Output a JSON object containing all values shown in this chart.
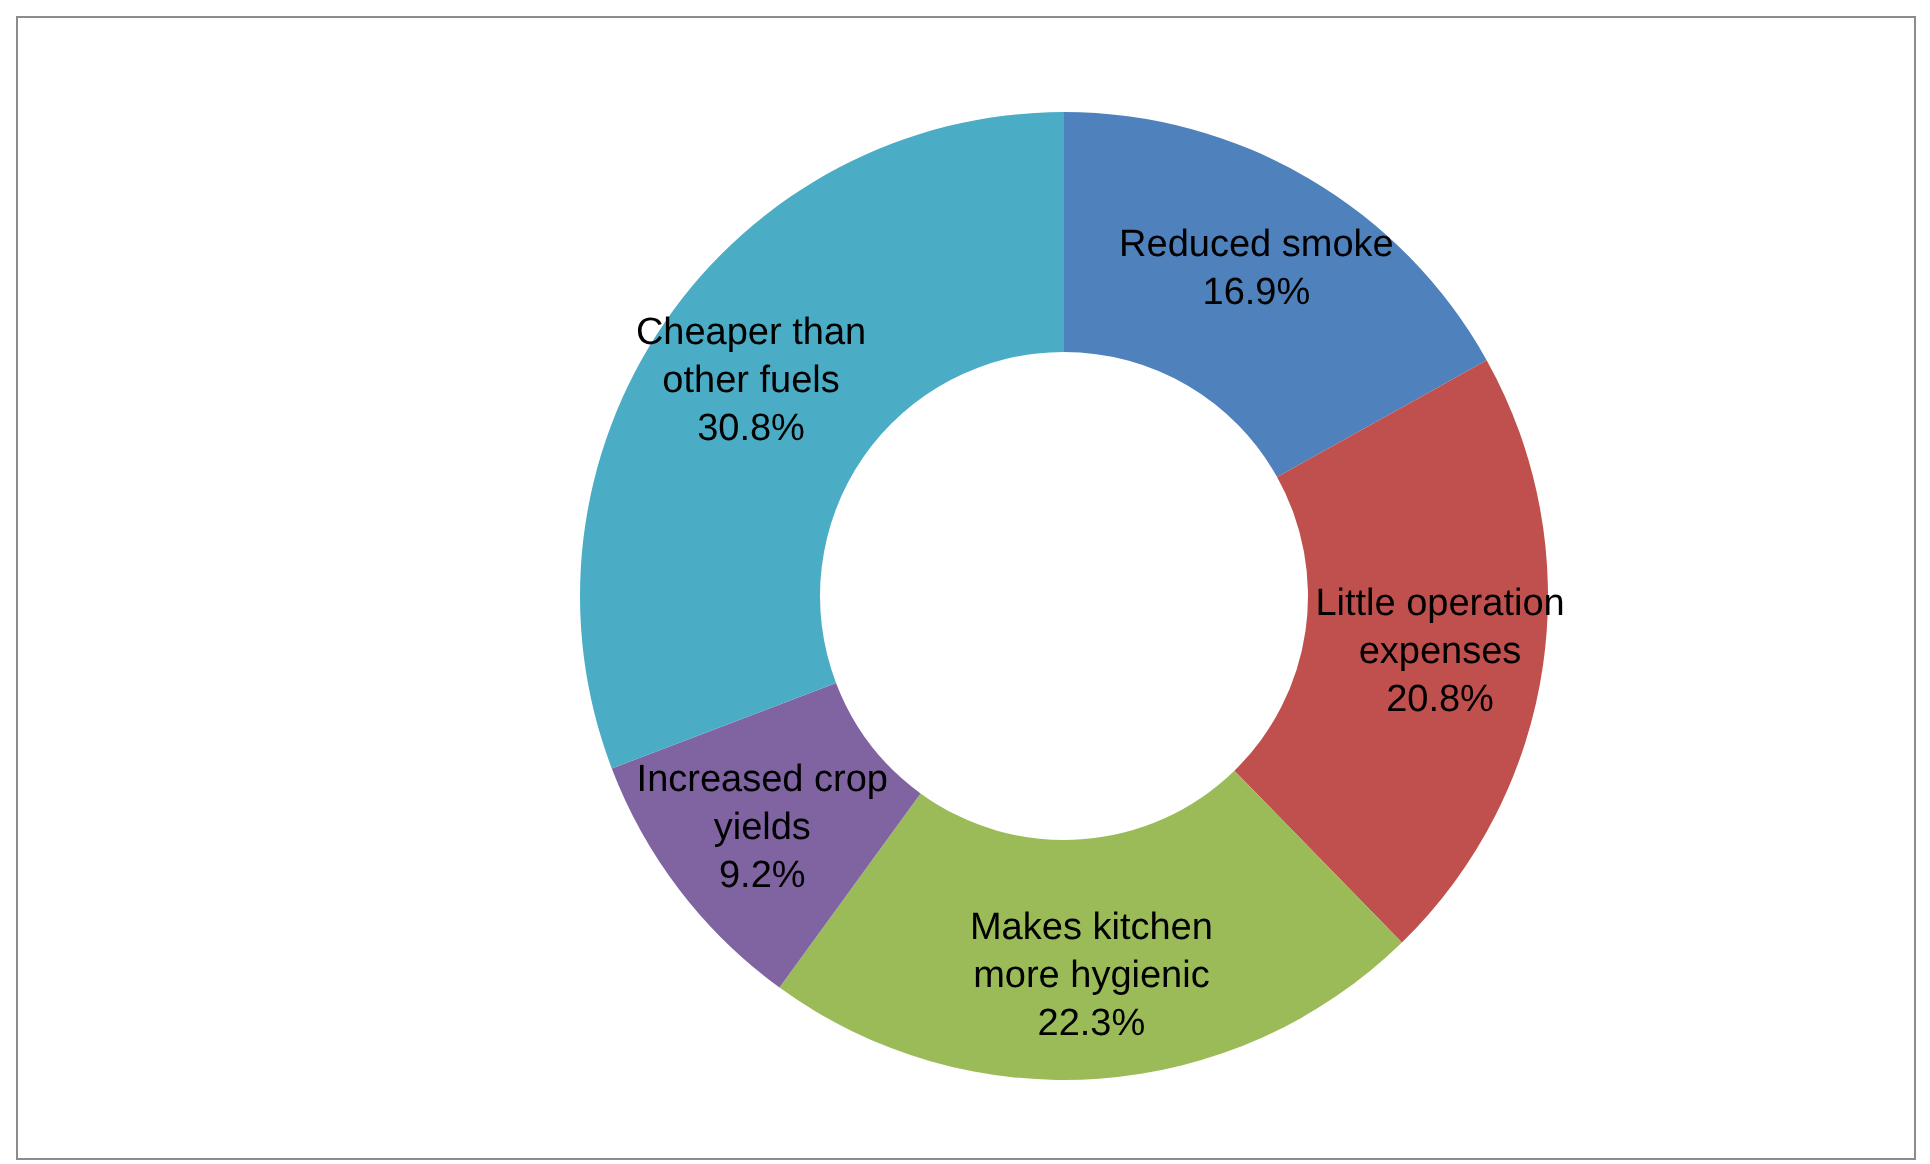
{
  "chart_data": {
    "type": "donut",
    "categories": [
      "Reduced smoke",
      "Little operation expenses",
      "Makes kitchen more hygienic",
      "Increased crop yields",
      "Cheaper than other fuels"
    ],
    "values": [
      16.9,
      20.8,
      22.3,
      9.2,
      30.8
    ],
    "colors": [
      "#4f81bd",
      "#c0504d",
      "#9bbb59",
      "#8064a2",
      "#4bacc6"
    ],
    "value_labels": [
      "16.9%",
      "20.8%",
      "22.3%",
      "9.2%",
      "30.8%"
    ],
    "legend": false
  }
}
